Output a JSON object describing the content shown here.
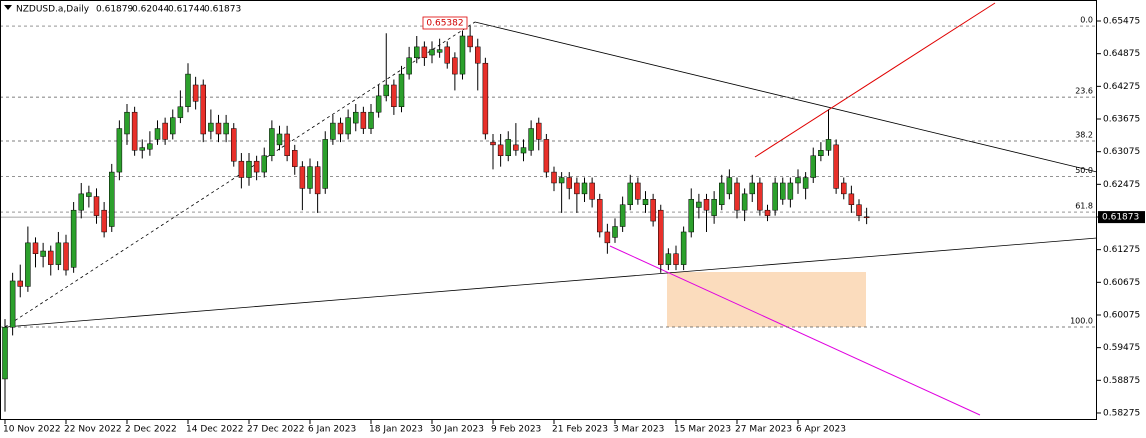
{
  "chart_data": {
    "type": "candlestick",
    "symbol": "NZDUSD.a,Daily",
    "categories": [
      "10 Nov 2022",
      null,
      null,
      null,
      null,
      null,
      null,
      null,
      "22 Nov 2022",
      null,
      null,
      null,
      null,
      null,
      null,
      null,
      "2 Dec 2022",
      null,
      null,
      null,
      null,
      null,
      null,
      null,
      "14 Dec 2022",
      null,
      null,
      null,
      null,
      null,
      null,
      null,
      "27 Dec 2022",
      null,
      null,
      null,
      null,
      null,
      null,
      null,
      "6 Jan 2023",
      null,
      null,
      null,
      null,
      null,
      null,
      null,
      "18 Jan 2023",
      null,
      null,
      null,
      null,
      null,
      null,
      null,
      "30 Jan 2023",
      null,
      null,
      null,
      null,
      null,
      null,
      null,
      "9 Feb 2023",
      null,
      null,
      null,
      null,
      null,
      null,
      null,
      "21 Feb 2023",
      null,
      null,
      null,
      null,
      null,
      null,
      null,
      "3 Mar 2023",
      null,
      null,
      null,
      null,
      null,
      null,
      null,
      "15 Mar 2023",
      null,
      null,
      null,
      null,
      null,
      null,
      null,
      "27 Mar 2023",
      null,
      null,
      null,
      null,
      null,
      null,
      null,
      "6 Apr 2023",
      null,
      null,
      null,
      null,
      null,
      null,
      null,
      null,
      null
    ],
    "open": [
      0.589,
      0.5985,
      0.607,
      0.606,
      0.614,
      0.6115,
      0.6125,
      0.61,
      0.614,
      0.6095,
      0.62,
      0.6225,
      0.6225,
      0.62,
      0.617,
      0.627,
      0.634,
      0.638,
      0.631,
      0.6312,
      0.633,
      0.636,
      0.634,
      0.637,
      0.639,
      0.643,
      0.643,
      0.6345,
      0.636,
      0.634,
      0.635,
      0.629,
      0.626,
      0.629,
      0.627,
      0.63,
      0.632,
      0.634,
      0.631,
      0.628,
      0.624,
      0.628,
      0.624,
      0.633,
      0.636,
      0.634,
      0.636,
      0.638,
      0.635,
      0.638,
      0.641,
      0.643,
      0.639,
      0.645,
      0.648,
      0.65,
      0.6485,
      0.649,
      0.65,
      0.648,
      0.645,
      0.652,
      0.65,
      0.647,
      0.6325,
      0.632,
      0.63,
      0.632,
      0.6305,
      0.631,
      0.636,
      0.633,
      0.627,
      0.625,
      0.626,
      0.625,
      0.623,
      0.625,
      0.622,
      0.616,
      0.615,
      0.617,
      0.621,
      0.625,
      0.621,
      0.622,
      0.62,
      0.61,
      0.612,
      0.61,
      0.616,
      0.6205,
      0.622,
      0.619,
      0.621,
      0.623,
      0.625,
      0.62,
      0.623,
      0.625,
      0.62,
      0.62,
      0.622,
      0.622,
      0.625,
      0.624,
      0.626,
      0.63,
      0.631,
      0.632,
      0.625,
      0.623,
      0.621,
      0.61879
    ],
    "high": [
      0.6,
      0.6085,
      0.61,
      0.617,
      0.615,
      0.614,
      0.6135,
      0.616,
      0.6155,
      0.6215,
      0.625,
      0.6245,
      0.624,
      0.6215,
      0.6285,
      0.6365,
      0.6395,
      0.639,
      0.633,
      0.6345,
      0.6365,
      0.637,
      0.6385,
      0.642,
      0.647,
      0.6445,
      0.644,
      0.6385,
      0.6375,
      0.6375,
      0.636,
      0.6305,
      0.6305,
      0.63,
      0.6315,
      0.6365,
      0.6355,
      0.6355,
      0.632,
      0.629,
      0.6295,
      0.629,
      0.6345,
      0.6375,
      0.637,
      0.6385,
      0.6395,
      0.639,
      0.6395,
      0.643,
      0.6525,
      0.644,
      0.6465,
      0.65,
      0.652,
      0.651,
      0.651,
      0.6515,
      0.651,
      0.649,
      0.653,
      0.6538,
      0.6515,
      0.648,
      0.634,
      0.634,
      0.6345,
      0.636,
      0.633,
      0.6365,
      0.637,
      0.634,
      0.628,
      0.627,
      0.627,
      0.626,
      0.626,
      0.626,
      0.623,
      0.6175,
      0.6185,
      0.6225,
      0.6265,
      0.626,
      0.6235,
      0.623,
      0.621,
      0.613,
      0.6135,
      0.617,
      0.624,
      0.623,
      0.623,
      0.6235,
      0.6265,
      0.6275,
      0.626,
      0.624,
      0.6265,
      0.626,
      0.621,
      0.626,
      0.626,
      0.626,
      0.6275,
      0.627,
      0.6315,
      0.6325,
      0.6385,
      0.633,
      0.626,
      0.6245,
      0.622,
      0.62044
    ],
    "low": [
      0.583,
      0.597,
      0.604,
      0.605,
      0.6095,
      0.6095,
      0.608,
      0.609,
      0.608,
      0.6085,
      0.6185,
      0.6205,
      0.6175,
      0.615,
      0.616,
      0.6255,
      0.632,
      0.63,
      0.6295,
      0.63,
      0.632,
      0.632,
      0.633,
      0.636,
      0.638,
      0.6385,
      0.6325,
      0.633,
      0.6325,
      0.6325,
      0.628,
      0.624,
      0.6245,
      0.6255,
      0.626,
      0.629,
      0.631,
      0.629,
      0.6265,
      0.62,
      0.623,
      0.6195,
      0.623,
      0.632,
      0.6325,
      0.633,
      0.6345,
      0.634,
      0.634,
      0.637,
      0.64,
      0.6375,
      0.638,
      0.644,
      0.647,
      0.6465,
      0.647,
      0.648,
      0.646,
      0.642,
      0.644,
      0.649,
      0.642,
      0.633,
      0.6275,
      0.628,
      0.629,
      0.63,
      0.629,
      0.63,
      0.631,
      0.626,
      0.6235,
      0.6195,
      0.622,
      0.6195,
      0.6215,
      0.6205,
      0.615,
      0.612,
      0.614,
      0.616,
      0.62,
      0.621,
      0.6195,
      0.617,
      0.6085,
      0.609,
      0.609,
      0.609,
      0.615,
      0.6185,
      0.616,
      0.6175,
      0.62,
      0.622,
      0.6185,
      0.618,
      0.6215,
      0.619,
      0.618,
      0.619,
      0.621,
      0.6205,
      0.623,
      0.622,
      0.625,
      0.629,
      0.63,
      0.623,
      0.622,
      0.6195,
      0.618,
      0.61744
    ],
    "close": [
      0.5985,
      0.607,
      0.606,
      0.614,
      0.612,
      0.6125,
      0.61,
      0.614,
      0.609,
      0.62,
      0.623,
      0.6232,
      0.619,
      0.616,
      0.627,
      0.635,
      0.638,
      0.631,
      0.6315,
      0.6322,
      0.635,
      0.633,
      0.637,
      0.639,
      0.645,
      0.64,
      0.634,
      0.636,
      0.634,
      0.636,
      0.629,
      0.626,
      0.629,
      0.627,
      0.63,
      0.635,
      0.634,
      0.63,
      0.628,
      0.624,
      0.628,
      0.623,
      0.633,
      0.636,
      0.634,
      0.637,
      0.638,
      0.635,
      0.638,
      0.641,
      0.643,
      0.639,
      0.645,
      0.648,
      0.65,
      0.648,
      0.6495,
      0.6495,
      0.647,
      0.645,
      0.652,
      0.65,
      0.647,
      0.634,
      0.632,
      0.63,
      0.633,
      0.631,
      0.6315,
      0.635,
      0.633,
      0.627,
      0.625,
      0.626,
      0.624,
      0.623,
      0.625,
      0.622,
      0.616,
      0.614,
      0.617,
      0.621,
      0.625,
      0.622,
      0.622,
      0.618,
      0.61,
      0.612,
      0.61,
      0.616,
      0.622,
      0.6215,
      0.62,
      0.622,
      0.625,
      0.626,
      0.62,
      0.623,
      0.625,
      0.62,
      0.619,
      0.625,
      0.625,
      0.625,
      0.626,
      0.626,
      0.63,
      0.631,
      0.633,
      0.624,
      0.623,
      0.621,
      0.619,
      0.61873
    ],
    "up_color": "#2ca02c",
    "down_color": "#e8302a",
    "ylim": [
      0.58146,
      0.65861
    ],
    "yticks": [
      0.65475,
      0.64875,
      0.64275,
      0.63675,
      0.63075,
      0.62475,
      0.61875,
      0.61275,
      0.60675,
      0.60075,
      0.59475,
      0.58875,
      0.58275
    ],
    "trendline_label": 0.65382,
    "fib_levels": [
      {
        "value": 0,
        "label": "0.0"
      },
      23.6,
      38.2,
      {
        "value": 50,
        "label": "50.0"
      },
      61.8,
      {
        "value": 100,
        "label": "100.0"
      }
    ]
  }
}
